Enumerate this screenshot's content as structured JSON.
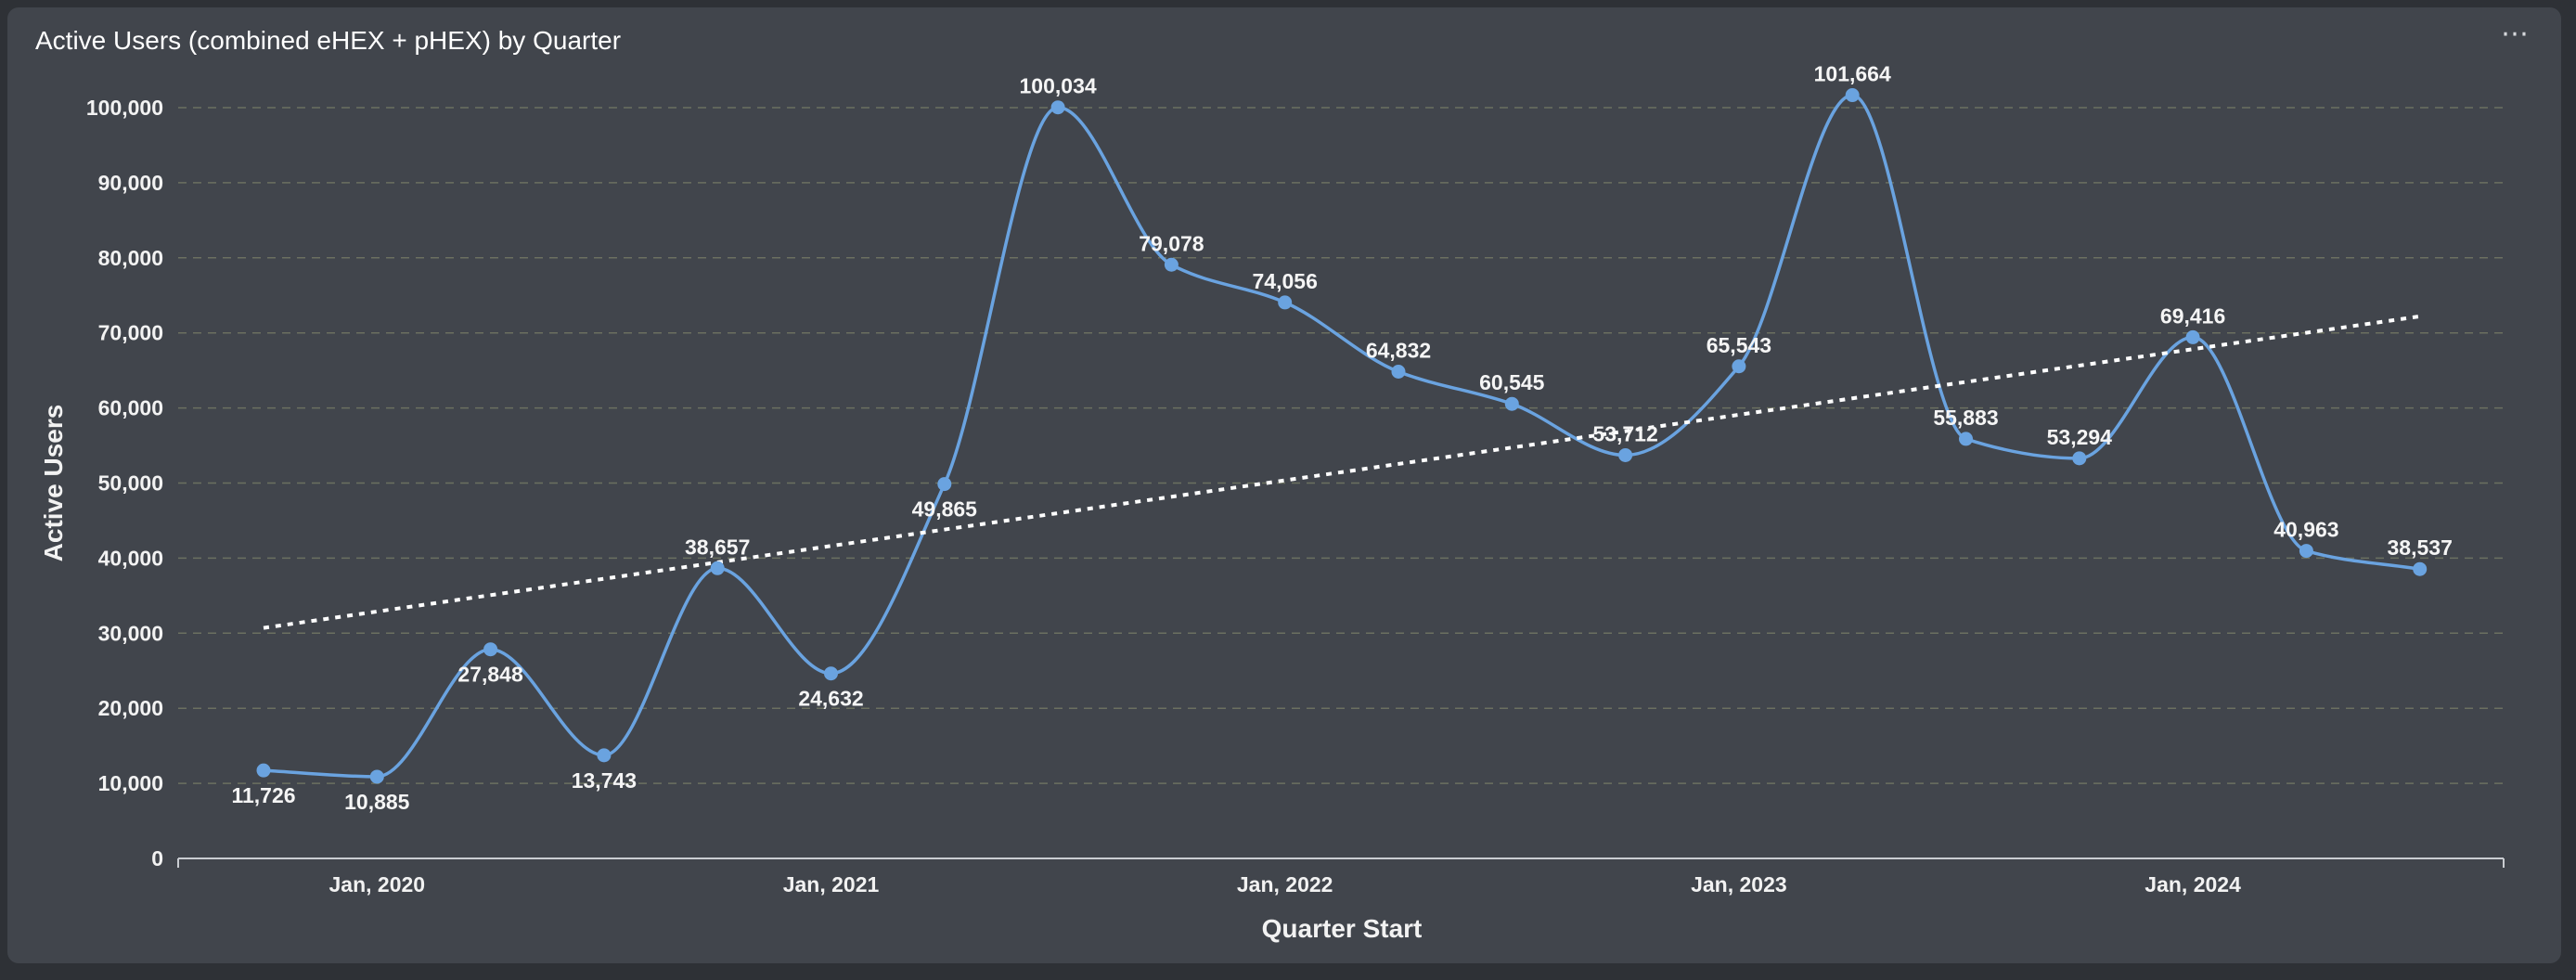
{
  "card": {
    "title": "Active Users (combined eHEX + pHEX) by Quarter",
    "more_icon": "ellipsis-icon",
    "more_glyph": "⋯"
  },
  "colors": {
    "background": "#2e3136",
    "card": "#41454c",
    "line": "#6aa3e0",
    "trend": "#ffffff",
    "grid": "#6b7060",
    "text": "#f2f2f2"
  },
  "chart_data": {
    "type": "line",
    "title": "Active Users (combined eHEX + pHEX) by Quarter",
    "xlabel": "Quarter Start",
    "ylabel": "Active Users",
    "ylim": [
      0,
      100000
    ],
    "y_ticks": [
      0,
      10000,
      20000,
      30000,
      40000,
      50000,
      60000,
      70000,
      80000,
      90000,
      100000
    ],
    "y_tick_labels": [
      "0",
      "10,000",
      "20,000",
      "30,000",
      "40,000",
      "50,000",
      "60,000",
      "70,000",
      "80,000",
      "90,000",
      "100,000"
    ],
    "x_tick_labels": [
      "Jan, 2020",
      "Jan, 2021",
      "Jan, 2022",
      "Jan, 2023",
      "Jan, 2024"
    ],
    "x_tick_quarters": [
      "2020-01-01",
      "2021-01-01",
      "2022-01-01",
      "2023-01-01",
      "2024-01-01"
    ],
    "grid": true,
    "smooth": true,
    "categories": [
      "2019-10-01",
      "2020-01-01",
      "2020-04-01",
      "2020-07-01",
      "2020-10-01",
      "2021-01-01",
      "2021-04-01",
      "2021-07-01",
      "2021-10-01",
      "2022-01-01",
      "2022-04-01",
      "2022-07-01",
      "2022-10-01",
      "2023-01-01",
      "2023-04-01",
      "2023-07-01",
      "2023-10-01",
      "2024-01-01",
      "2024-04-01",
      "2024-07-01"
    ],
    "series": [
      {
        "values": [
          11726,
          10885,
          27848,
          13743,
          38657,
          24632,
          49865,
          100034,
          79078,
          74056,
          64832,
          60545,
          53712,
          65543,
          101664,
          55883,
          53294,
          69416,
          40963,
          38537
        ],
        "labels": [
          "11,726",
          "10,885",
          "27,848",
          "13,743",
          "38,657",
          "24,632",
          "49,865",
          "100,034",
          "79,078",
          "74,056",
          "64,832",
          "60,545",
          "53,712",
          "65,543",
          "101,664",
          "55,883",
          "53,294",
          "69,416",
          "40,963",
          "38,537"
        ],
        "label_pos": [
          "below",
          "below",
          "below",
          "below",
          "above",
          "below",
          "below",
          "above",
          "above",
          "above",
          "above",
          "above",
          "above",
          "above",
          "above",
          "above",
          "above",
          "above",
          "above",
          "above"
        ]
      }
    ],
    "trendline": {
      "style": "dotted",
      "start": 30700,
      "end": 72200
    }
  }
}
